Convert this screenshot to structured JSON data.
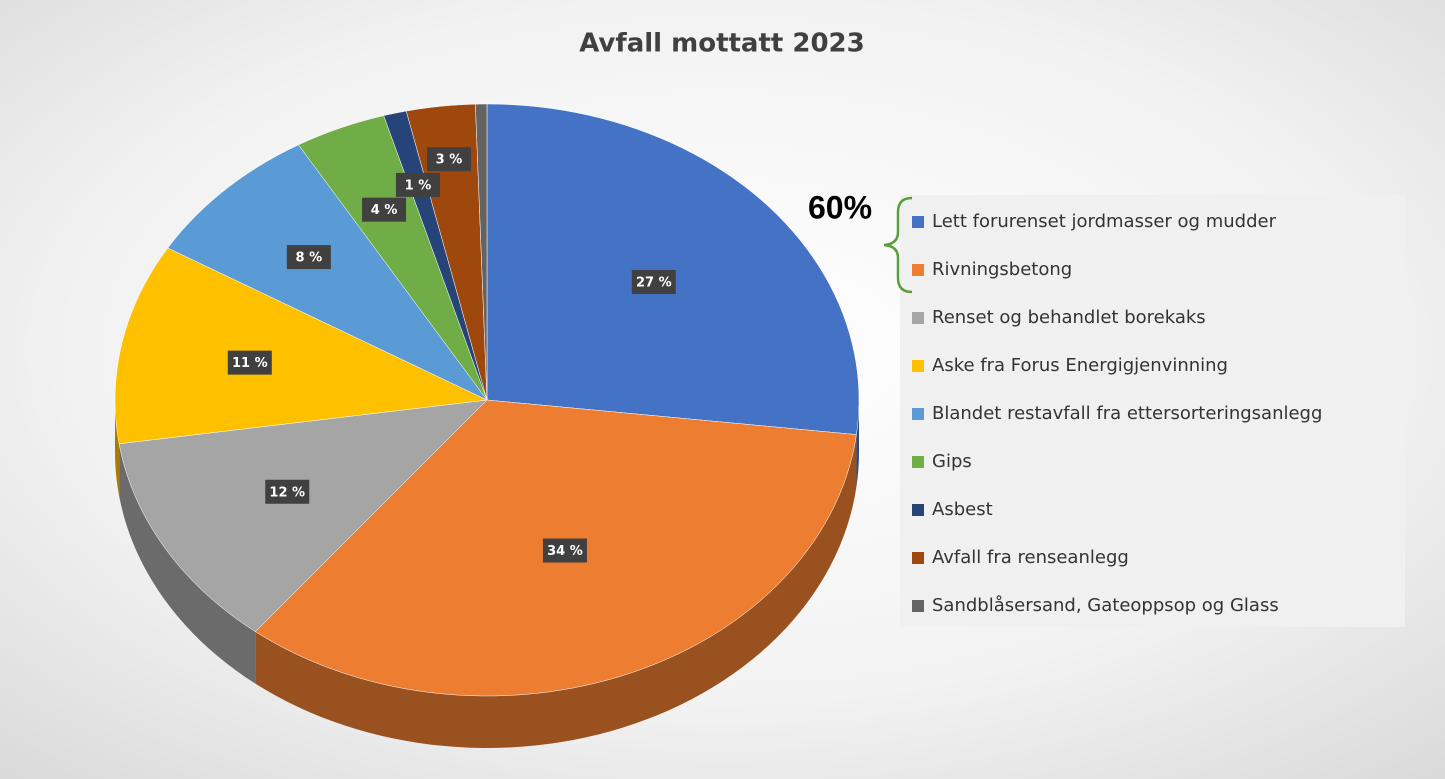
{
  "chart_data": {
    "type": "pie",
    "title": "Avfall mottatt 2023",
    "categories": [
      "Lett forurenset  jordmasser og mudder",
      "Rivningsbetong",
      "Renset og behandlet borekaks",
      "Aske fra Forus Energigjenvinning",
      "Blandet restavfall fra ettersorteringsanlegg",
      "Gips",
      "Asbest",
      "Avfall fra renseanlegg",
      "Sandblåsersand, Gateoppsop og Glass"
    ],
    "values": [
      27,
      34,
      12,
      11,
      8,
      4,
      1,
      3,
      0.5
    ],
    "value_labels": [
      "27 %",
      "34 %",
      "12 %",
      "11 %",
      "8 %",
      "4 %",
      "1 %",
      "3 %",
      null
    ],
    "colors": [
      "#4472c4",
      "#ed7d31",
      "#a5a5a5",
      "#ffc000",
      "#5b9bd5",
      "#70ad47",
      "#264478",
      "#9e480e",
      "#636363"
    ],
    "legend": "right",
    "annotation": "60%"
  }
}
